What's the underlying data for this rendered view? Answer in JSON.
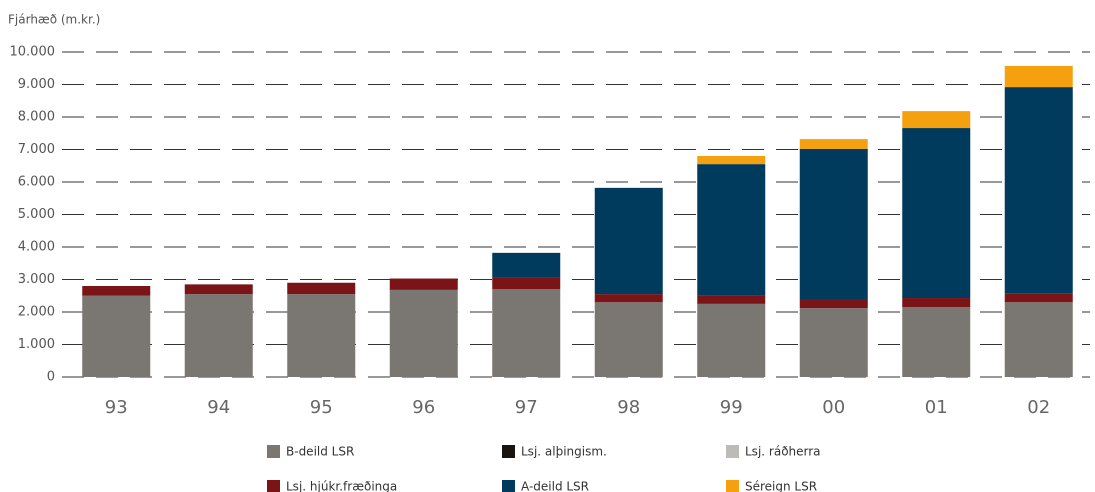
{
  "chart_data": {
    "type": "stacked_bar",
    "y_axis_label": "Fjárhæð (m.kr.)",
    "categories": [
      "93",
      "94",
      "95",
      "96",
      "97",
      "98",
      "99",
      "00",
      "01",
      "02"
    ],
    "series": [
      {
        "name": "B-deild LSR",
        "color": "#7a7671",
        "values": [
          2500,
          2550,
          2550,
          2680,
          2700,
          2300,
          2250,
          2120,
          2150,
          2300
        ]
      },
      {
        "name": "Lsj. alþingism.",
        "color": "#1a1410",
        "values": [
          0,
          0,
          0,
          0,
          0,
          0,
          0,
          0,
          0,
          0
        ]
      },
      {
        "name": "Lsj. ráðherra",
        "color": "#bdbbb8",
        "values": [
          0,
          0,
          0,
          0,
          0,
          0,
          0,
          0,
          0,
          0
        ]
      },
      {
        "name": "Lsj. hjúkr.fræðinga",
        "color": "#7a1416",
        "values": [
          300,
          300,
          350,
          350,
          350,
          250,
          270,
          280,
          280,
          280
        ]
      },
      {
        "name": "A-deild LSR",
        "color": "#003a5d",
        "values": [
          0,
          0,
          0,
          0,
          770,
          3270,
          4030,
          4620,
          5230,
          6340
        ]
      },
      {
        "name": "Séreign LSR",
        "color": "#f5a00f",
        "values": [
          0,
          0,
          0,
          0,
          0,
          0,
          250,
          300,
          520,
          650
        ]
      }
    ],
    "ylim": [
      0,
      10000
    ],
    "yticks": [
      0,
      {
        "value": 1000,
        "label": "1.000"
      },
      {
        "value": 2000,
        "label": "2.000"
      },
      {
        "value": 3000,
        "label": "3.000"
      },
      {
        "value": 4000,
        "label": "4.000"
      },
      {
        "value": 5000,
        "label": "5.000"
      },
      {
        "value": 6000,
        "label": "6.000"
      },
      {
        "value": 7000,
        "label": "7.000"
      },
      {
        "value": 8000,
        "label": "8.000"
      },
      {
        "value": 9000,
        "label": "9.000"
      },
      {
        "value": 10000,
        "label": "10.000"
      }
    ],
    "grid": true,
    "legend": "bottom"
  }
}
